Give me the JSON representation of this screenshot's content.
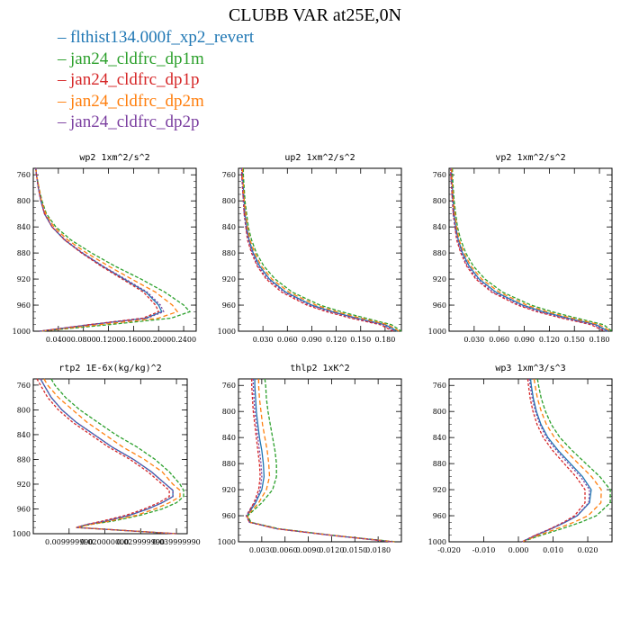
{
  "title": "CLUBB VAR at25E,0N",
  "legend": [
    {
      "label": "flthist134.000f_xp2_revert",
      "color": "#1f77b4"
    },
    {
      "label": "jan24_cldfrc_dp1m",
      "color": "#2ca02c"
    },
    {
      "label": "jan24_cldfrc_dp1p",
      "color": "#d62728"
    },
    {
      "label": "jan24_cldfrc_dp2m",
      "color": "#ff7f0e"
    },
    {
      "label": "jan24_cldfrc_dp2p",
      "color": "#7b3fa0"
    }
  ],
  "chart_data": [
    {
      "type": "line",
      "title": "wp2   1xm^2/s^2",
      "ylim": [
        1000,
        750
      ],
      "yticks": [
        760,
        800,
        840,
        880,
        920,
        960,
        1000
      ],
      "xlim": [
        0,
        0.26
      ],
      "xticks": [
        0.04,
        0.08,
        0.12,
        0.16,
        0.2,
        0.24
      ],
      "xtick_labels": [
        "0.0400",
        "0.0800",
        "0.1200",
        "0.1600",
        "0.2000",
        "0.2400"
      ],
      "y": [
        750,
        760,
        780,
        800,
        820,
        840,
        860,
        880,
        900,
        920,
        940,
        960,
        970,
        980,
        990,
        1000
      ],
      "series": [
        {
          "name": "flthist134.000f_xp2_revert",
          "values": [
            0.004,
            0.005,
            0.008,
            0.012,
            0.018,
            0.03,
            0.05,
            0.078,
            0.11,
            0.145,
            0.18,
            0.2,
            0.205,
            0.18,
            0.09,
            0.01
          ]
        },
        {
          "name": "jan24_cldfrc_dp1m",
          "values": [
            0.004,
            0.005,
            0.009,
            0.014,
            0.021,
            0.036,
            0.06,
            0.093,
            0.13,
            0.172,
            0.21,
            0.24,
            0.25,
            0.22,
            0.12,
            0.012
          ]
        },
        {
          "name": "jan24_cldfrc_dp1p",
          "values": [
            0.004,
            0.005,
            0.008,
            0.012,
            0.018,
            0.03,
            0.05,
            0.077,
            0.108,
            0.142,
            0.176,
            0.195,
            0.2,
            0.175,
            0.088,
            0.01
          ]
        },
        {
          "name": "jan24_cldfrc_dp2m",
          "values": [
            0.004,
            0.005,
            0.009,
            0.013,
            0.02,
            0.033,
            0.055,
            0.085,
            0.12,
            0.157,
            0.195,
            0.222,
            0.23,
            0.2,
            0.105,
            0.011
          ]
        },
        {
          "name": "jan24_cldfrc_dp2p",
          "values": [
            0.004,
            0.005,
            0.008,
            0.012,
            0.018,
            0.03,
            0.051,
            0.079,
            0.111,
            0.147,
            0.182,
            0.203,
            0.208,
            0.182,
            0.09,
            0.01
          ]
        }
      ]
    },
    {
      "type": "line",
      "title": "up2   1xm^2/s^2",
      "ylim": [
        1000,
        750
      ],
      "yticks": [
        760,
        800,
        840,
        880,
        920,
        960,
        1000
      ],
      "xlim": [
        0,
        0.2
      ],
      "xticks": [
        0.03,
        0.06,
        0.09,
        0.12,
        0.15,
        0.18
      ],
      "xtick_labels": [
        "0.030",
        "0.060",
        "0.090",
        "0.120",
        "0.150",
        "0.180"
      ],
      "y": [
        750,
        760,
        780,
        800,
        820,
        840,
        860,
        880,
        900,
        920,
        940,
        960,
        970,
        980,
        990,
        1000
      ],
      "series": [
        {
          "name": "flthist134.000f_xp2_revert",
          "values": [
            0.005,
            0.005,
            0.006,
            0.007,
            0.008,
            0.01,
            0.013,
            0.018,
            0.026,
            0.038,
            0.058,
            0.09,
            0.115,
            0.145,
            0.18,
            0.195
          ]
        },
        {
          "name": "jan24_cldfrc_dp1m",
          "values": [
            0.006,
            0.006,
            0.007,
            0.008,
            0.01,
            0.012,
            0.016,
            0.022,
            0.031,
            0.045,
            0.066,
            0.1,
            0.126,
            0.156,
            0.188,
            0.2
          ]
        },
        {
          "name": "jan24_cldfrc_dp1p",
          "values": [
            0.004,
            0.004,
            0.005,
            0.006,
            0.007,
            0.009,
            0.011,
            0.016,
            0.023,
            0.034,
            0.053,
            0.084,
            0.108,
            0.138,
            0.174,
            0.19
          ]
        },
        {
          "name": "jan24_cldfrc_dp2m",
          "values": [
            0.005,
            0.005,
            0.006,
            0.007,
            0.009,
            0.011,
            0.014,
            0.02,
            0.028,
            0.041,
            0.062,
            0.095,
            0.12,
            0.15,
            0.184,
            0.197
          ]
        },
        {
          "name": "jan24_cldfrc_dp2p",
          "values": [
            0.004,
            0.004,
            0.005,
            0.006,
            0.007,
            0.009,
            0.012,
            0.017,
            0.024,
            0.036,
            0.056,
            0.087,
            0.112,
            0.142,
            0.177,
            0.192
          ]
        }
      ]
    },
    {
      "type": "line",
      "title": "vp2   1xm^2/s^2",
      "ylim": [
        1000,
        750
      ],
      "yticks": [
        760,
        800,
        840,
        880,
        920,
        960,
        1000
      ],
      "xlim": [
        0,
        0.195
      ],
      "xticks": [
        0.03,
        0.06,
        0.09,
        0.12,
        0.15,
        0.18
      ],
      "xtick_labels": [
        "0.030",
        "0.060",
        "0.090",
        "0.120",
        "0.150",
        "0.180"
      ],
      "y": [
        750,
        760,
        780,
        800,
        820,
        840,
        860,
        880,
        900,
        920,
        940,
        960,
        970,
        980,
        990,
        1000
      ],
      "series": [
        {
          "name": "flthist134.000f_xp2_revert",
          "values": [
            0.003,
            0.003,
            0.004,
            0.005,
            0.006,
            0.008,
            0.011,
            0.016,
            0.024,
            0.036,
            0.056,
            0.088,
            0.112,
            0.142,
            0.176,
            0.19
          ]
        },
        {
          "name": "jan24_cldfrc_dp1m",
          "values": [
            0.004,
            0.004,
            0.005,
            0.006,
            0.008,
            0.01,
            0.014,
            0.02,
            0.029,
            0.043,
            0.064,
            0.098,
            0.123,
            0.153,
            0.185,
            0.195
          ]
        },
        {
          "name": "jan24_cldfrc_dp1p",
          "values": [
            0.002,
            0.002,
            0.003,
            0.004,
            0.005,
            0.007,
            0.009,
            0.014,
            0.021,
            0.032,
            0.051,
            0.082,
            0.105,
            0.135,
            0.17,
            0.186
          ]
        },
        {
          "name": "jan24_cldfrc_dp2m",
          "values": [
            0.003,
            0.003,
            0.004,
            0.005,
            0.007,
            0.009,
            0.012,
            0.018,
            0.026,
            0.039,
            0.06,
            0.093,
            0.117,
            0.147,
            0.18,
            0.193
          ]
        },
        {
          "name": "jan24_cldfrc_dp2p",
          "values": [
            0.002,
            0.002,
            0.003,
            0.004,
            0.005,
            0.007,
            0.01,
            0.015,
            0.022,
            0.034,
            0.053,
            0.085,
            0.108,
            0.138,
            0.173,
            0.188
          ]
        }
      ]
    },
    {
      "type": "line",
      "title": "rtp2   1E-6x(kg/kg)^2",
      "ylim": [
        1000,
        750
      ],
      "yticks": [
        760,
        800,
        840,
        880,
        920,
        960,
        1000
      ],
      "xlim": [
        0,
        0.043
      ],
      "xticks": [
        0.01,
        0.02,
        0.03,
        0.04
      ],
      "xtick_labels": [
        "0.009999990",
        "0.020000000",
        "0.029999990",
        "0.039999990"
      ],
      "y": [
        750,
        760,
        780,
        800,
        820,
        840,
        860,
        880,
        900,
        920,
        930,
        940,
        950,
        960,
        970,
        980,
        985,
        990,
        1000
      ],
      "series": [
        {
          "name": "flthist134.000f_xp2_revert",
          "values": [
            0.002,
            0.003,
            0.005,
            0.008,
            0.012,
            0.017,
            0.022,
            0.028,
            0.033,
            0.037,
            0.039,
            0.039,
            0.036,
            0.032,
            0.027,
            0.02,
            0.015,
            0.012,
            0.04
          ]
        },
        {
          "name": "jan24_cldfrc_dp1m",
          "values": [
            0.005,
            0.006,
            0.009,
            0.013,
            0.018,
            0.023,
            0.029,
            0.034,
            0.038,
            0.041,
            0.042,
            0.042,
            0.04,
            0.036,
            0.03,
            0.022,
            0.016,
            0.012,
            0.04
          ]
        },
        {
          "name": "jan24_cldfrc_dp1p",
          "values": [
            0.001,
            0.002,
            0.004,
            0.007,
            0.011,
            0.016,
            0.021,
            0.027,
            0.032,
            0.036,
            0.038,
            0.038,
            0.035,
            0.031,
            0.026,
            0.019,
            0.015,
            0.012,
            0.04
          ]
        },
        {
          "name": "jan24_cldfrc_dp2m",
          "values": [
            0.003,
            0.004,
            0.007,
            0.011,
            0.015,
            0.02,
            0.025,
            0.031,
            0.036,
            0.039,
            0.041,
            0.041,
            0.038,
            0.034,
            0.029,
            0.021,
            0.016,
            0.012,
            0.04
          ]
        },
        {
          "name": "jan24_cldfrc_dp2p",
          "values": [
            0.002,
            0.003,
            0.005,
            0.008,
            0.012,
            0.017,
            0.022,
            0.028,
            0.033,
            0.037,
            0.039,
            0.039,
            0.036,
            0.032,
            0.027,
            0.02,
            0.015,
            0.012,
            0.04
          ]
        }
      ]
    },
    {
      "type": "line",
      "title": "thlp2   1xK^2",
      "ylim": [
        1000,
        750
      ],
      "yticks": [
        760,
        800,
        840,
        880,
        920,
        960,
        1000
      ],
      "xlim": [
        0,
        0.021
      ],
      "xticks": [
        0.003,
        0.006,
        0.009,
        0.012,
        0.015,
        0.018
      ],
      "xtick_labels": [
        "0.0030",
        "0.0060",
        "0.0090",
        "0.0120",
        "0.0150",
        "0.0180"
      ],
      "y": [
        750,
        760,
        780,
        800,
        820,
        840,
        860,
        880,
        900,
        920,
        940,
        960,
        970,
        980,
        990,
        1000
      ],
      "series": [
        {
          "name": "flthist134.000f_xp2_revert",
          "values": [
            0.0021,
            0.0021,
            0.0022,
            0.0023,
            0.0025,
            0.0027,
            0.003,
            0.0032,
            0.0033,
            0.003,
            0.0022,
            0.0011,
            0.0015,
            0.005,
            0.012,
            0.02
          ]
        },
        {
          "name": "jan24_cldfrc_dp1m",
          "values": [
            0.0034,
            0.0035,
            0.0036,
            0.0038,
            0.0041,
            0.0044,
            0.0047,
            0.0049,
            0.0049,
            0.0044,
            0.003,
            0.0012,
            0.0016,
            0.0052,
            0.0122,
            0.0203
          ]
        },
        {
          "name": "jan24_cldfrc_dp1p",
          "values": [
            0.0017,
            0.0017,
            0.0018,
            0.0019,
            0.0021,
            0.0023,
            0.0025,
            0.0027,
            0.0028,
            0.0026,
            0.002,
            0.001,
            0.0014,
            0.0049,
            0.0119,
            0.0198
          ]
        },
        {
          "name": "jan24_cldfrc_dp2m",
          "values": [
            0.0026,
            0.0026,
            0.0027,
            0.0029,
            0.0031,
            0.0034,
            0.0037,
            0.0039,
            0.004,
            0.0036,
            0.0026,
            0.0011,
            0.0015,
            0.005,
            0.0121,
            0.0201
          ]
        },
        {
          "name": "jan24_cldfrc_dp2p",
          "values": [
            0.0019,
            0.0019,
            0.002,
            0.0021,
            0.0023,
            0.0025,
            0.0027,
            0.0029,
            0.003,
            0.0028,
            0.0021,
            0.001,
            0.0014,
            0.0049,
            0.012,
            0.0199
          ]
        }
      ]
    },
    {
      "type": "line",
      "title": "wp3   1xm^3/s^3",
      "ylim": [
        1000,
        750
      ],
      "yticks": [
        760,
        800,
        840,
        880,
        920,
        960,
        1000
      ],
      "xlim": [
        -0.02,
        0.027
      ],
      "xticks": [
        -0.02,
        -0.01,
        0.0,
        0.01,
        0.02
      ],
      "xtick_labels": [
        "-0.020",
        "-0.010",
        "0.000",
        "0.010",
        "0.020"
      ],
      "y": [
        750,
        760,
        780,
        800,
        820,
        840,
        860,
        880,
        900,
        920,
        940,
        960,
        970,
        980,
        990,
        1000
      ],
      "series": [
        {
          "name": "flthist134.000f_xp2_revert",
          "values": [
            0.0035,
            0.0037,
            0.0043,
            0.0052,
            0.0065,
            0.0085,
            0.0115,
            0.015,
            0.0185,
            0.021,
            0.0205,
            0.017,
            0.0135,
            0.0095,
            0.005,
            0.001
          ]
        },
        {
          "name": "jan24_cldfrc_dp1m",
          "values": [
            0.0055,
            0.0058,
            0.0066,
            0.0078,
            0.0095,
            0.012,
            0.0155,
            0.0195,
            0.0235,
            0.0265,
            0.0265,
            0.0225,
            0.018,
            0.0125,
            0.0065,
            0.001
          ]
        },
        {
          "name": "jan24_cldfrc_dp1p",
          "values": [
            0.0027,
            0.0029,
            0.0034,
            0.0042,
            0.0054,
            0.0072,
            0.0099,
            0.0132,
            0.0166,
            0.0192,
            0.0192,
            0.0162,
            0.013,
            0.0092,
            0.0048,
            0.001
          ]
        },
        {
          "name": "jan24_cldfrc_dp2m",
          "values": [
            0.0045,
            0.0048,
            0.0055,
            0.0066,
            0.0081,
            0.0104,
            0.0136,
            0.0173,
            0.0211,
            0.0239,
            0.0238,
            0.0201,
            0.016,
            0.0111,
            0.0058,
            0.001
          ]
        },
        {
          "name": "jan24_cldfrc_dp2p",
          "values": [
            0.0032,
            0.0034,
            0.004,
            0.0049,
            0.0062,
            0.0081,
            0.011,
            0.0144,
            0.0179,
            0.0205,
            0.0203,
            0.0169,
            0.0134,
            0.0094,
            0.0049,
            0.001
          ]
        }
      ]
    }
  ]
}
